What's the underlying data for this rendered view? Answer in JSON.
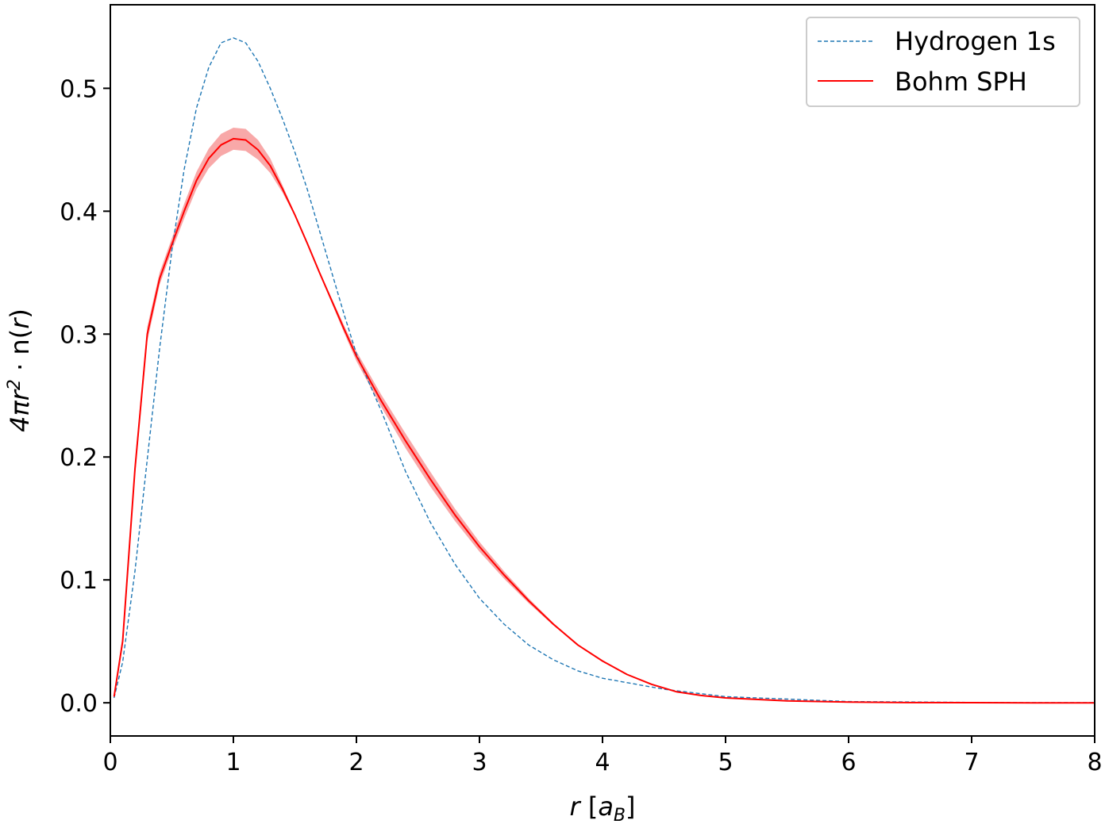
{
  "chart_data": {
    "type": "line",
    "xlabel": {
      "var": "r",
      "unit_open": "[",
      "unit_main": "a",
      "unit_sub": "B",
      "unit_close": "]"
    },
    "ylabel": {
      "pre": "4πr",
      "sup": "2",
      "mid": " · n(",
      "var": "r",
      "post": ")"
    },
    "xlim": [
      0,
      8
    ],
    "ylim": [
      -0.027,
      0.568
    ],
    "x_ticks": [
      0,
      1,
      2,
      3,
      4,
      5,
      6,
      7,
      8
    ],
    "x_tick_labels": [
      "0",
      "1",
      "2",
      "3",
      "4",
      "5",
      "6",
      "7",
      "8"
    ],
    "y_ticks": [
      0.0,
      0.1,
      0.2,
      0.3,
      0.4,
      0.5
    ],
    "y_tick_labels": [
      "0.0",
      "0.1",
      "0.2",
      "0.3",
      "0.4",
      "0.5"
    ],
    "grid": false,
    "legend_position": "top-right",
    "series": [
      {
        "name": "Hydrogen 1s",
        "color": "#1f77b4",
        "style": "dashed",
        "x": [
          0.03,
          0.1,
          0.2,
          0.3,
          0.4,
          0.5,
          0.6,
          0.7,
          0.8,
          0.9,
          1.0,
          1.1,
          1.2,
          1.3,
          1.4,
          1.5,
          1.6,
          1.7,
          1.8,
          1.9,
          2.0,
          2.2,
          2.4,
          2.6,
          2.8,
          3.0,
          3.2,
          3.4,
          3.6,
          3.8,
          4.0,
          4.5,
          5.0,
          5.5,
          6.0,
          6.5,
          7.0,
          7.5,
          8.0
        ],
        "y": [
          0.004,
          0.033,
          0.107,
          0.198,
          0.288,
          0.368,
          0.434,
          0.484,
          0.517,
          0.537,
          0.541,
          0.537,
          0.522,
          0.5,
          0.475,
          0.448,
          0.418,
          0.384,
          0.35,
          0.316,
          0.284,
          0.238,
          0.188,
          0.147,
          0.113,
          0.085,
          0.064,
          0.047,
          0.035,
          0.026,
          0.02,
          0.011,
          0.005,
          0.003,
          0.001,
          0.0007,
          0.0003,
          0.0001,
          0.0001
        ]
      },
      {
        "name": "Bohm SPH",
        "color": "#ff0000",
        "style": "solid",
        "band_color": "#f8a8a8",
        "x": [
          0.03,
          0.1,
          0.2,
          0.3,
          0.4,
          0.5,
          0.6,
          0.7,
          0.8,
          0.9,
          1.0,
          1.1,
          1.2,
          1.3,
          1.4,
          1.5,
          1.6,
          1.7,
          1.8,
          1.9,
          2.0,
          2.2,
          2.4,
          2.6,
          2.8,
          3.0,
          3.2,
          3.4,
          3.6,
          3.8,
          4.0,
          4.2,
          4.4,
          4.6,
          4.8,
          5.0,
          5.5,
          6.0,
          6.5,
          7.0,
          7.5,
          8.0
        ],
        "y": [
          0.005,
          0.05,
          0.19,
          0.3,
          0.345,
          0.373,
          0.4,
          0.425,
          0.443,
          0.454,
          0.459,
          0.458,
          0.45,
          0.437,
          0.418,
          0.397,
          0.374,
          0.35,
          0.327,
          0.304,
          0.282,
          0.246,
          0.213,
          0.182,
          0.153,
          0.127,
          0.104,
          0.083,
          0.064,
          0.047,
          0.034,
          0.023,
          0.015,
          0.009,
          0.006,
          0.004,
          0.0015,
          0.0006,
          0.0002,
          0.0001,
          0.0,
          0.0
        ],
        "band": [
          0.002,
          0.004,
          0.006,
          0.006,
          0.005,
          0.005,
          0.006,
          0.007,
          0.008,
          0.009,
          0.009,
          0.009,
          0.008,
          0.006,
          0.003,
          0.001,
          0.0,
          0.001,
          0.002,
          0.003,
          0.004,
          0.005,
          0.006,
          0.006,
          0.005,
          0.004,
          0.003,
          0.002,
          0.001,
          0.0,
          0.0,
          0.0,
          0.0,
          0.0,
          0.0,
          0.0,
          0.0,
          0.0,
          0.0,
          0.0,
          0.0,
          0.0
        ]
      }
    ]
  }
}
